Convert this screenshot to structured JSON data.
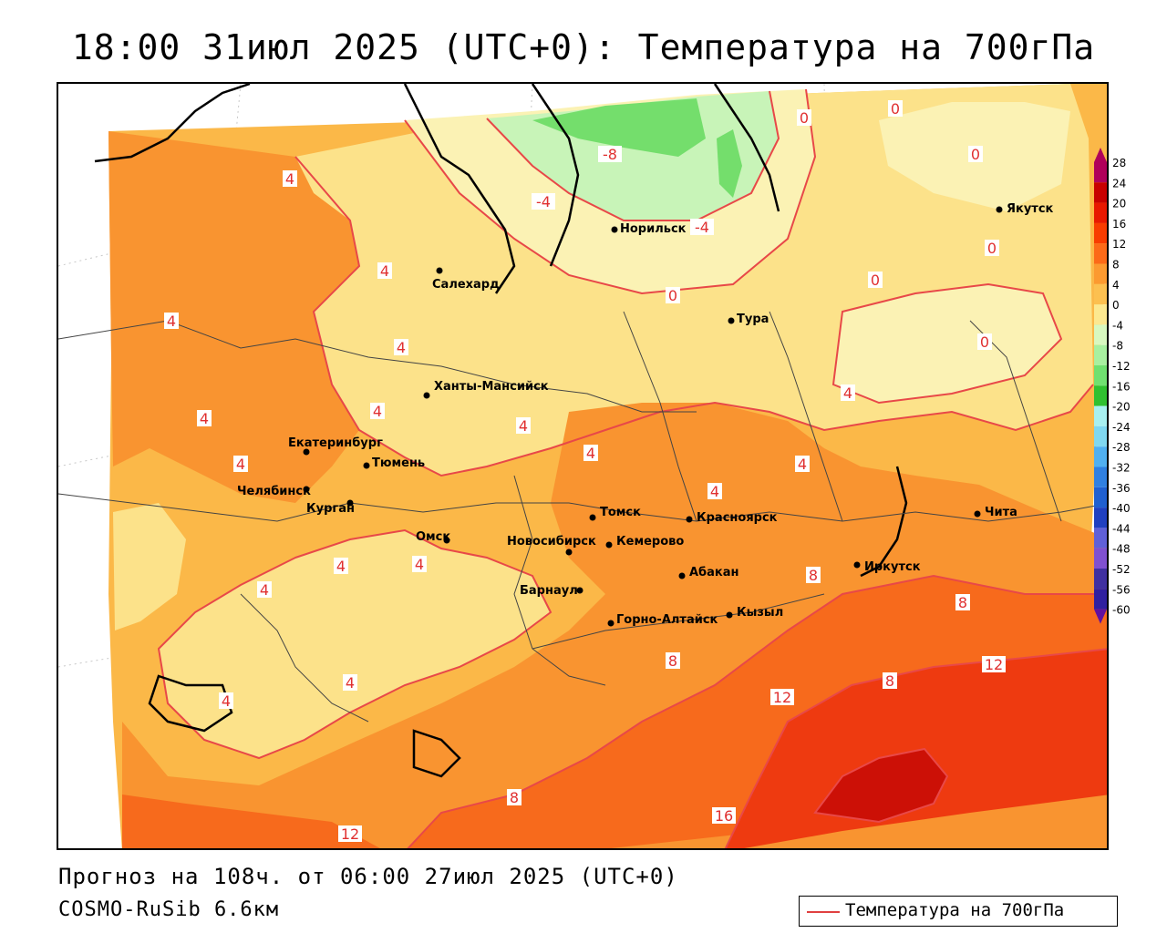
{
  "title": "18:00 31июл 2025 (UTC+0): Температура на 700гПа",
  "footer": {
    "forecast": "Прогноз на 108ч. от 06:00 27июл 2025 (UTC+0)",
    "model": "COSMO-RuSib 6.6км"
  },
  "legend": {
    "label": "Температура на 700гПа",
    "line_color": "#e04040"
  },
  "scale": {
    "ticks": [
      "28",
      "24",
      "20",
      "16",
      "12",
      "8",
      "4",
      "0",
      "-4",
      "-8",
      "-12",
      "-16",
      "-20",
      "-24",
      "-28",
      "-32",
      "-36",
      "-40",
      "-44",
      "-48",
      "-52",
      "-56",
      "-60"
    ],
    "colors": [
      "#b0005a",
      "#c80000",
      "#e81800",
      "#f83c00",
      "#fc6a18",
      "#fc9a30",
      "#fcc050",
      "#fce890",
      "#d8f8c0",
      "#a8f0a0",
      "#70e070",
      "#30c030",
      "#a8f0f0",
      "#80d8f0",
      "#50b0f0",
      "#3080e0",
      "#2060d0",
      "#2040c0",
      "#6060d8",
      "#8050d0",
      "#4030a0",
      "#3020a0",
      "#6010a0"
    ]
  },
  "cities": [
    {
      "name": "Якутск"
    },
    {
      "name": "Норильск"
    },
    {
      "name": "Салехард"
    },
    {
      "name": "Тура"
    },
    {
      "name": "Ханты-Мансийск"
    },
    {
      "name": "Екатеринбург"
    },
    {
      "name": "Тюмень"
    },
    {
      "name": "Челябинск"
    },
    {
      "name": "Курган"
    },
    {
      "name": "Омск"
    },
    {
      "name": "Новосибирск"
    },
    {
      "name": "Томск"
    },
    {
      "name": "Кемерово"
    },
    {
      "name": "Красноярск"
    },
    {
      "name": "Абакан"
    },
    {
      "name": "Барнаул"
    },
    {
      "name": "Горно-Алтайск"
    },
    {
      "name": "Кызыл"
    },
    {
      "name": "Иркутск"
    },
    {
      "name": "Чита"
    }
  ],
  "isolines": [
    "-8",
    "-4",
    "-4",
    "0",
    "0",
    "0",
    "0",
    "0",
    "0",
    "0",
    "4",
    "4",
    "4",
    "4",
    "4",
    "4",
    "4",
    "4",
    "4",
    "4",
    "4",
    "4",
    "4",
    "4",
    "4",
    "4",
    "4",
    "8",
    "8",
    "8",
    "8",
    "8",
    "12",
    "12",
    "12",
    "16"
  ],
  "colors": {
    "warm_light": "#fce28a",
    "warm_mid": "#fbb848",
    "warm_orange": "#f99430",
    "hot_orange": "#f76a1c",
    "hot_red": "#ee3a10",
    "hottest": "#cc1006",
    "cool_pale": "#fbf2b4",
    "cool_green": "#c8f4b8",
    "cold_green": "#74de6c",
    "isoline": "#e84848"
  }
}
